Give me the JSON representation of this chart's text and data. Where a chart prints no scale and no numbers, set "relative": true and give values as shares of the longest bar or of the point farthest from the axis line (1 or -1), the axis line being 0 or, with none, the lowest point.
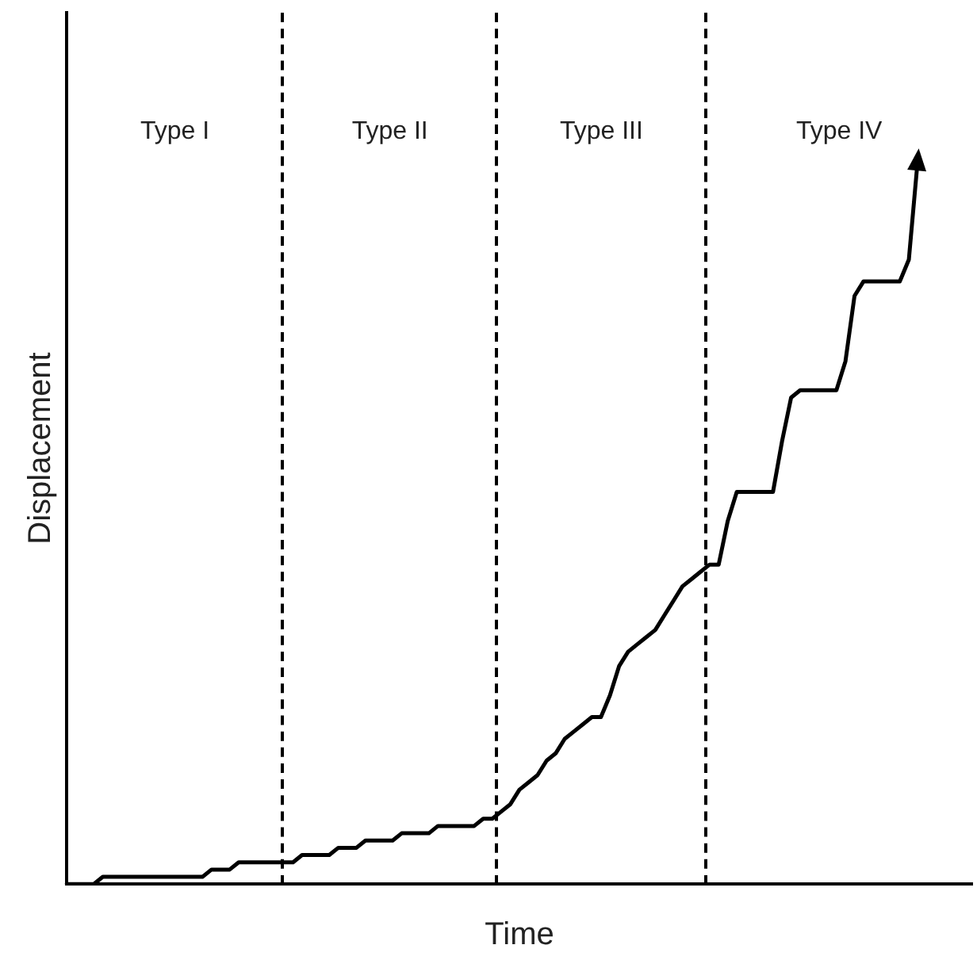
{
  "chart_data": {
    "type": "line",
    "relative": true,
    "xlabel": "Time",
    "ylabel": "Displacement",
    "grid": false,
    "legend": false,
    "marker": "none",
    "annotations": [
      "Type I",
      "Type II",
      "Type III",
      "Type IV"
    ],
    "categories": [
      null,
      null,
      null,
      null,
      null,
      null,
      null,
      null,
      null,
      null,
      null,
      null,
      null,
      null,
      null,
      null,
      null,
      null,
      null,
      null,
      null,
      null,
      null,
      null,
      null,
      null,
      null,
      null,
      null,
      null,
      null,
      null,
      null,
      null,
      null,
      null,
      null,
      null,
      null,
      null,
      null,
      null,
      null,
      null,
      null,
      null,
      null,
      null,
      null,
      null,
      null,
      null,
      null,
      null,
      null,
      null,
      null,
      null,
      null,
      null,
      null,
      null,
      null,
      null,
      null,
      null,
      null,
      null,
      null,
      null,
      null,
      null,
      null,
      null,
      null,
      null,
      null,
      null,
      null,
      null,
      null,
      null,
      null,
      null,
      null,
      null,
      null,
      null,
      null,
      null,
      null,
      null,
      null,
      null,
      null,
      null,
      null,
      null,
      null,
      null,
      null
    ],
    "series": [
      {
        "color": "#000000",
        "line_style": "solid",
        "values": [
          0,
          0,
          0,
          0,
          0.01,
          0.01,
          0.01,
          0.01,
          0.01,
          0.01,
          0.01,
          0.01,
          0.01,
          0.01,
          0.01,
          0.01,
          0.02,
          0.02,
          0.02,
          0.03,
          0.03,
          0.03,
          0.03,
          0.03,
          0.03,
          0.03,
          0.04,
          0.04,
          0.04,
          0.04,
          0.05,
          0.05,
          0.05,
          0.06,
          0.06,
          0.06,
          0.06,
          0.07,
          0.07,
          0.07,
          0.07,
          0.08,
          0.08,
          0.08,
          0.08,
          0.08,
          0.09,
          0.09,
          0.1,
          0.11,
          0.13,
          0.14,
          0.15,
          0.17,
          0.18,
          0.2,
          0.21,
          0.22,
          0.23,
          0.23,
          0.26,
          0.3,
          0.32,
          0.33,
          0.34,
          0.35,
          0.37,
          0.39,
          0.41,
          0.42,
          0.43,
          0.44,
          0.44,
          0.5,
          0.54,
          0.54,
          0.54,
          0.54,
          0.54,
          0.61,
          0.67,
          0.68,
          0.68,
          0.68,
          0.68,
          0.68,
          0.72,
          0.81,
          0.83,
          0.83,
          0.83,
          0.83,
          0.83,
          0.86,
          1,
          null,
          null,
          null,
          null,
          null,
          null
        ]
      }
    ]
  }
}
